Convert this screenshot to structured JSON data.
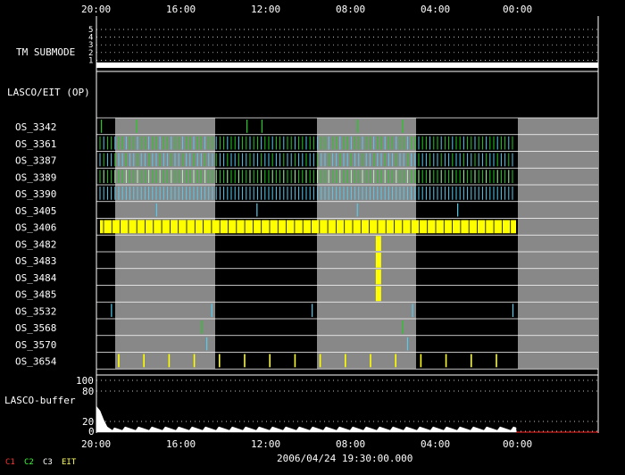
{
  "time_axis": {
    "tick_labels": [
      "20:00",
      "16:00",
      "12:00",
      "08:00",
      "04:00",
      "00:00"
    ]
  },
  "submode_panel": {
    "title": "TM SUBMODE",
    "levels": [
      "5",
      "4",
      "3",
      "2",
      "1"
    ]
  },
  "section_header": {
    "title": "LASCO/EIT (OP)"
  },
  "os_rows": [
    {
      "label": "OS_3342",
      "type": "sparse",
      "color": "#22cc22",
      "marks": [
        1,
        8,
        30,
        33,
        52,
        61
      ]
    },
    {
      "label": "OS_3361",
      "type": "dense",
      "color": "#22cc22",
      "alt": "#55ccee"
    },
    {
      "label": "OS_3387",
      "type": "dense",
      "color": "#55ccee",
      "alt": "#22cc22"
    },
    {
      "label": "OS_3389",
      "type": "dense",
      "color": "#22cc22",
      "alt": "#aaffaa"
    },
    {
      "label": "OS_3390",
      "type": "dense",
      "color": "#55ccee",
      "alt": "#55ccee"
    },
    {
      "label": "OS_3405",
      "type": "sparse",
      "color": "#55ccee",
      "marks": [
        12,
        32,
        52,
        72
      ]
    },
    {
      "label": "OS_3406",
      "type": "dense_yellow",
      "color": "#ffff00"
    },
    {
      "label": "OS_3482",
      "type": "block",
      "color": "#ffff00",
      "marks": [
        56.2
      ]
    },
    {
      "label": "OS_3483",
      "type": "block",
      "color": "#ffff00",
      "marks": [
        56.2
      ]
    },
    {
      "label": "OS_3484",
      "type": "block",
      "color": "#ffff00",
      "marks": [
        56.2
      ]
    },
    {
      "label": "OS_3485",
      "type": "block",
      "color": "#ffff00",
      "marks": [
        56.2
      ]
    },
    {
      "label": "OS_3532",
      "type": "sparse",
      "color": "#55ccee",
      "marks": [
        3,
        23,
        43,
        63,
        83
      ]
    },
    {
      "label": "OS_3568",
      "type": "sparse",
      "color": "#22cc22",
      "marks": [
        21,
        61
      ]
    },
    {
      "label": "OS_3570",
      "type": "sparse",
      "color": "#55ccee",
      "marks": [
        22,
        62
      ]
    },
    {
      "label": "OS_3654",
      "type": "yellow_ticks",
      "color": "#ffff00"
    }
  ],
  "buffer_panel": {
    "title": "LASCO-buffer",
    "levels": [
      "100",
      "80",
      "20",
      "0"
    ]
  },
  "footer": {
    "legend": [
      {
        "label": "C1",
        "color": "#ff3333"
      },
      {
        "label": "C2",
        "color": "#33ff33"
      },
      {
        "label": "C3",
        "color": "#ffffff"
      },
      {
        "label": "EIT",
        "color": "#ffff66"
      }
    ],
    "timestamp": "2006/04/24 19:30:00.000"
  }
}
